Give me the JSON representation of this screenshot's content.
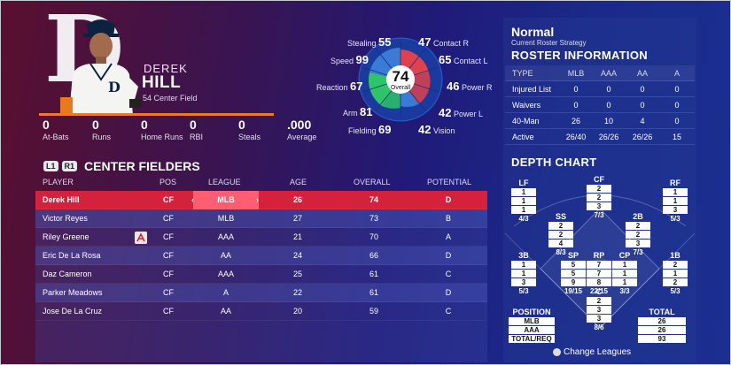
{
  "player": {
    "first_name": "DEREK",
    "last_name": "HILL",
    "number_position": "54  Center Field",
    "team_logo": "D",
    "stats": [
      {
        "value": "0",
        "label": "At-Bats"
      },
      {
        "value": "0",
        "label": "Runs"
      },
      {
        "value": "0",
        "label": "Home Runs"
      },
      {
        "value": "0",
        "label": "RBI"
      },
      {
        "value": "0",
        "label": "Steals"
      },
      {
        "value": ".000",
        "label": "Average"
      }
    ]
  },
  "ratings": {
    "overall_value": "74",
    "overall_label": "Overall",
    "attributes": [
      {
        "label": "Stealing",
        "value": "55"
      },
      {
        "label": "Speed",
        "value": "99"
      },
      {
        "label": "Reaction",
        "value": "67"
      },
      {
        "label": "Arm",
        "value": "81"
      },
      {
        "label": "Fielding",
        "value": "69"
      },
      {
        "label": "Contact R",
        "value": "47"
      },
      {
        "label": "Contact L",
        "value": "65"
      },
      {
        "label": "Power R",
        "value": "46"
      },
      {
        "label": "Power L",
        "value": "42"
      },
      {
        "label": "Vision",
        "value": "42"
      }
    ],
    "colors": {
      "blue": "#3a7bd5",
      "red": "#e0414f",
      "green": "#2fc36a"
    }
  },
  "position_list": {
    "btn_l1": "L1",
    "btn_r1": "R1",
    "title": "CENTER FIELDERS",
    "columns": [
      "PLAYER",
      "POS",
      "LEAGUE",
      "AGE",
      "OVERALL",
      "POTENTIAL"
    ],
    "rows": [
      {
        "player": "Derek Hill",
        "pos": "CF",
        "league": "MLB",
        "age": "26",
        "overall": "74",
        "potential": "D"
      },
      {
        "player": "Victor Reyes",
        "pos": "CF",
        "league": "MLB",
        "age": "27",
        "overall": "73",
        "potential": "B"
      },
      {
        "player": "Riley Greene",
        "pos": "CF",
        "league": "AAA",
        "age": "21",
        "overall": "70",
        "potential": "A"
      },
      {
        "player": "Eric De La Rosa",
        "pos": "CF",
        "league": "AA",
        "age": "24",
        "overall": "66",
        "potential": "D"
      },
      {
        "player": "Daz Cameron",
        "pos": "CF",
        "league": "AAA",
        "age": "25",
        "overall": "61",
        "potential": "C"
      },
      {
        "player": "Parker Meadows",
        "pos": "CF",
        "league": "A",
        "age": "22",
        "overall": "61",
        "potential": "D"
      },
      {
        "player": "Jose De La Cruz",
        "pos": "CF",
        "league": "AA",
        "age": "20",
        "overall": "59",
        "potential": "C"
      }
    ],
    "arrow_left": "‹",
    "arrow_right": "›"
  },
  "strategy": {
    "name": "Normal",
    "subtitle": "Current Roster Strategy"
  },
  "roster_info": {
    "title": "ROSTER INFORMATION",
    "columns": [
      "TYPE",
      "MLB",
      "AAA",
      "AA",
      "A"
    ],
    "rows": [
      {
        "type": "Injured List",
        "mlb": "0",
        "aaa": "0",
        "aa": "0",
        "a": "0"
      },
      {
        "type": "Waivers",
        "mlb": "0",
        "aaa": "0",
        "aa": "0",
        "a": "0"
      },
      {
        "type": "40-Man",
        "mlb": "26",
        "aaa": "10",
        "aa": "4",
        "a": "0"
      },
      {
        "type": "Active",
        "mlb": "26/40",
        "aaa": "26/26",
        "aa": "26/26",
        "a": "15"
      }
    ]
  },
  "depth_chart": {
    "title": "DEPTH CHART",
    "positions": [
      {
        "pos": "LF",
        "values": [
          "1",
          "1",
          "1"
        ],
        "total": "4/3"
      },
      {
        "pos": "CF",
        "values": [
          "2",
          "2",
          "3"
        ],
        "total": "7/3"
      },
      {
        "pos": "RF",
        "values": [
          "1",
          "1",
          "3"
        ],
        "total": "5/3"
      },
      {
        "pos": "SS",
        "values": [
          "2",
          "2",
          "4"
        ],
        "total": "8/3"
      },
      {
        "pos": "2B",
        "values": [
          "2",
          "2",
          "3"
        ],
        "total": "7/3"
      },
      {
        "pos": "3B",
        "values": [
          "1",
          "1",
          "3"
        ],
        "total": "5/3"
      },
      {
        "pos": "SP",
        "values": [
          "5",
          "5",
          "9"
        ],
        "total": "19/15"
      },
      {
        "pos": "RP",
        "values": [
          "7",
          "7",
          "8"
        ],
        "total": "22/15"
      },
      {
        "pos": "CP",
        "values": [
          "1",
          "1",
          "1"
        ],
        "total": "3/3"
      },
      {
        "pos": "1B",
        "values": [
          "2",
          "1",
          "2"
        ],
        "total": "5/3"
      },
      {
        "pos": "C",
        "values": [
          "2",
          "3",
          "3"
        ],
        "total": "8/6"
      }
    ],
    "position_header": "POSITION",
    "position_rows": [
      "MLB",
      "AAA",
      "TOTAL/REQ"
    ],
    "total_header": "TOTAL",
    "total_rows": [
      "26",
      "26",
      "93"
    ]
  },
  "footer": {
    "change_leagues": "Change Leagues"
  }
}
